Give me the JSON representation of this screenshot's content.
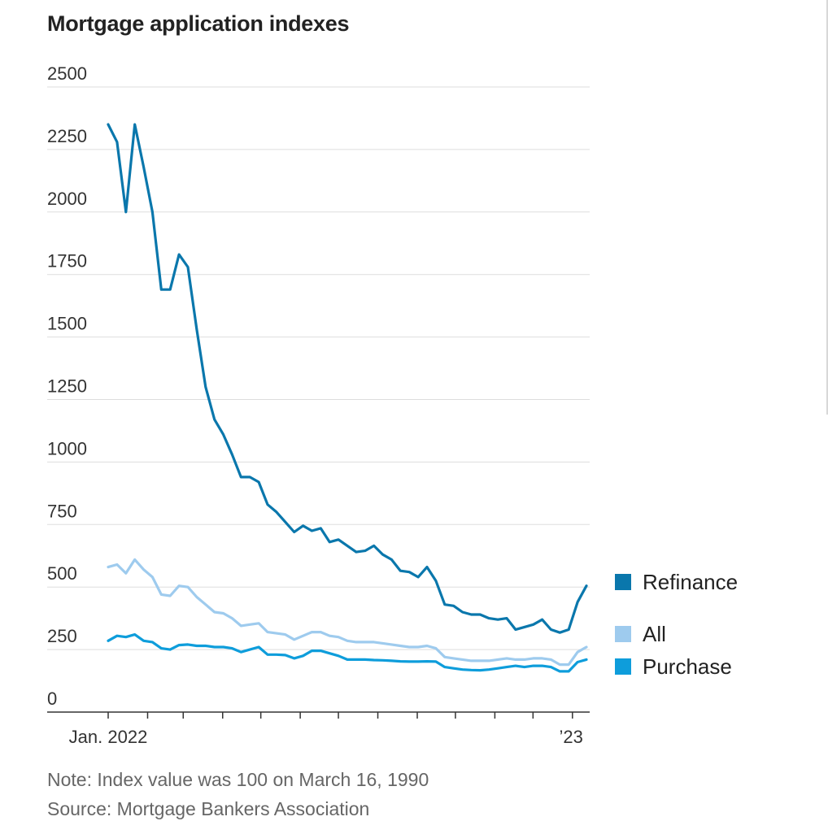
{
  "chart_data": {
    "type": "line",
    "title": "Mortgage application indexes",
    "xlabel": "",
    "ylabel": "",
    "ylim": [
      0,
      2500
    ],
    "yticks": [
      "0",
      "250",
      "500",
      "750",
      "1000",
      "1250",
      "1500",
      "1750",
      "2000",
      "2250",
      "2500"
    ],
    "ytick_values": [
      0,
      250,
      500,
      750,
      1000,
      1250,
      1500,
      1750,
      2000,
      2250,
      2500
    ],
    "xrange": [
      "2021-12-31",
      "2023-01-11"
    ],
    "xticks": [
      {
        "date": "2021-12-31",
        "label": "Jan. 2022"
      },
      {
        "date": "2022-12-30",
        "label": "’23"
      }
    ],
    "grid": true,
    "legend_position": "right",
    "series": [
      {
        "name": "Refinance",
        "color": "#0a77ac",
        "values": [
          2350,
          2280,
          2000,
          2350,
          2180,
          2000,
          1690,
          1690,
          1830,
          1780,
          1530,
          1300,
          1170,
          1110,
          1030,
          940,
          940,
          920,
          830,
          800,
          760,
          720,
          745,
          725,
          735,
          680,
          690,
          665,
          640,
          645,
          665,
          630,
          610,
          565,
          560,
          540,
          580,
          525,
          430,
          425,
          400,
          390,
          390,
          375,
          370,
          375,
          330,
          340,
          350,
          370,
          330,
          318,
          330,
          440,
          505
        ]
      },
      {
        "name": "All",
        "color": "#9ecbee",
        "values": [
          580,
          590,
          555,
          610,
          570,
          540,
          470,
          465,
          505,
          500,
          460,
          430,
          400,
          395,
          375,
          345,
          350,
          355,
          320,
          315,
          310,
          290,
          305,
          320,
          320,
          305,
          300,
          285,
          280,
          280,
          280,
          275,
          270,
          265,
          260,
          260,
          265,
          255,
          220,
          215,
          210,
          205,
          205,
          205,
          210,
          215,
          210,
          210,
          215,
          215,
          210,
          190,
          190,
          240,
          260
        ]
      },
      {
        "name": "Purchase",
        "color": "#0e9ddb",
        "values": [
          285,
          305,
          300,
          310,
          285,
          280,
          255,
          250,
          268,
          270,
          265,
          265,
          260,
          260,
          255,
          240,
          250,
          260,
          230,
          230,
          228,
          215,
          225,
          245,
          245,
          235,
          225,
          210,
          210,
          210,
          208,
          207,
          205,
          203,
          202,
          202,
          203,
          202,
          180,
          175,
          170,
          168,
          167,
          170,
          175,
          180,
          185,
          180,
          185,
          185,
          180,
          163,
          163,
          200,
          210
        ]
      }
    ]
  },
  "legend": [
    {
      "name": "Refinance",
      "color": "#0a77ac"
    },
    {
      "name": "All",
      "color": "#9ecbee"
    },
    {
      "name": "Purchase",
      "color": "#0e9ddb"
    }
  ],
  "note": "Note: Index value was 100 on March 16, 1990",
  "source": "Source: Mortgage Bankers Association"
}
